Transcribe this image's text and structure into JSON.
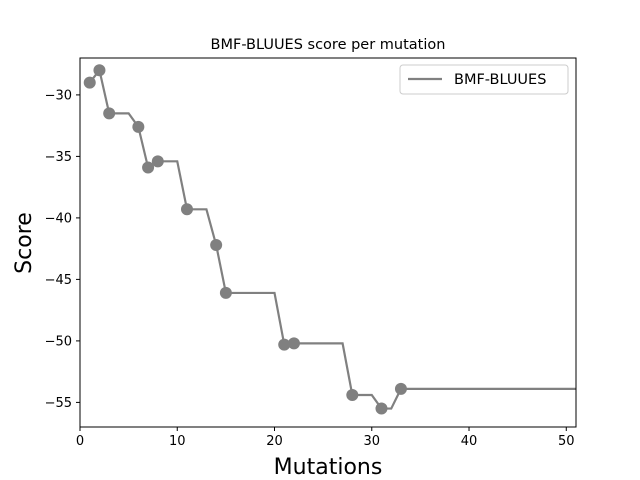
{
  "chart_data": {
    "type": "line",
    "title": "BMF-BLUUES score per mutation",
    "xlabel": "Mutations",
    "ylabel": "Score",
    "xlim": [
      0,
      51
    ],
    "ylim": [
      -57,
      -27
    ],
    "xticks": [
      0,
      10,
      20,
      30,
      40,
      50
    ],
    "yticks": [
      -55,
      -50,
      -45,
      -40,
      -35,
      -30
    ],
    "ytick_labels": [
      "−55",
      "−50",
      "−45",
      "−40",
      "−35",
      "−30"
    ],
    "grid": false,
    "legend_position": "top-right",
    "line_color": "#808080",
    "series": [
      {
        "name": "BMF-BLUUES",
        "step_line": [
          [
            1,
            -29.0
          ],
          [
            2,
            -28.0
          ],
          [
            3,
            -31.5
          ],
          [
            5,
            -31.5
          ],
          [
            6,
            -32.6
          ],
          [
            7,
            -35.9
          ],
          [
            8,
            -35.4
          ],
          [
            10,
            -35.4
          ],
          [
            11,
            -39.3
          ],
          [
            13,
            -39.3
          ],
          [
            14,
            -42.2
          ],
          [
            15,
            -46.1
          ],
          [
            20,
            -46.1
          ],
          [
            21,
            -50.3
          ],
          [
            22,
            -50.2
          ],
          [
            27,
            -50.2
          ],
          [
            28,
            -54.4
          ],
          [
            30,
            -54.4
          ],
          [
            31,
            -55.5
          ],
          [
            32,
            -55.5
          ],
          [
            33,
            -53.9
          ],
          [
            51,
            -53.9
          ]
        ],
        "markers": [
          [
            1,
            -29.0
          ],
          [
            2,
            -28.0
          ],
          [
            3,
            -31.5
          ],
          [
            6,
            -32.6
          ],
          [
            7,
            -35.9
          ],
          [
            8,
            -35.4
          ],
          [
            11,
            -39.3
          ],
          [
            14,
            -42.2
          ],
          [
            15,
            -46.1
          ],
          [
            21,
            -50.3
          ],
          [
            22,
            -50.2
          ],
          [
            28,
            -54.4
          ],
          [
            31,
            -55.5
          ],
          [
            33,
            -53.9
          ]
        ]
      }
    ]
  }
}
